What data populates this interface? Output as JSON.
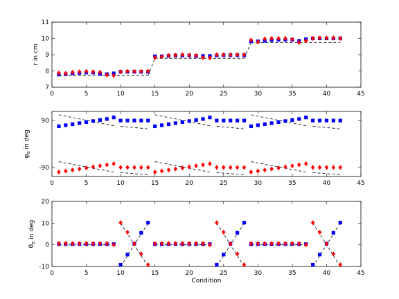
{
  "chart_data": [
    {
      "type": "scatter",
      "ylabel": "r in cm",
      "xlabel": "",
      "xlim": [
        0,
        45
      ],
      "ylim": [
        7,
        11
      ],
      "xticks": [
        "0",
        "5",
        "10",
        "15",
        "20",
        "25",
        "30",
        "35",
        "40",
        "45"
      ],
      "yticks": [
        "7",
        "8",
        "9",
        "10",
        "11"
      ],
      "grid": false,
      "reference_segments": [
        {
          "x": [
            1,
            14
          ],
          "y": [
            7.72,
            7.72
          ]
        },
        {
          "x": [
            14,
            15
          ],
          "y": [
            7.72,
            8.78
          ]
        },
        {
          "x": [
            15,
            28
          ],
          "y": [
            8.78,
            8.78
          ]
        },
        {
          "x": [
            28,
            29
          ],
          "y": [
            8.78,
            9.75
          ]
        },
        {
          "x": [
            29,
            42
          ],
          "y": [
            9.75,
            9.75
          ]
        }
      ],
      "series": [
        {
          "color": "#0000ff",
          "marker": "square",
          "x": [
            1,
            2,
            3,
            4,
            5,
            6,
            7,
            8,
            9,
            10,
            11,
            12,
            13,
            14,
            15,
            16,
            17,
            18,
            19,
            20,
            21,
            22,
            23,
            24,
            25,
            26,
            27,
            28,
            29,
            30,
            31,
            32,
            33,
            34,
            35,
            36,
            37,
            38,
            39,
            40,
            41,
            42
          ],
          "y": [
            7.78,
            7.8,
            7.85,
            7.88,
            7.9,
            7.9,
            7.82,
            7.8,
            7.85,
            7.95,
            7.95,
            7.95,
            7.95,
            7.95,
            8.9,
            8.9,
            8.93,
            8.95,
            8.95,
            8.95,
            8.92,
            8.92,
            8.92,
            8.95,
            8.97,
            8.97,
            8.97,
            8.97,
            9.82,
            9.82,
            9.85,
            9.9,
            9.92,
            9.92,
            9.92,
            9.85,
            9.95,
            10.0,
            10.0,
            10.0,
            10.0,
            10.0
          ]
        },
        {
          "color": "#ff0000",
          "marker": "diamond",
          "x": [
            1,
            2,
            3,
            4,
            5,
            6,
            7,
            8,
            9,
            10,
            11,
            12,
            13,
            14,
            15,
            16,
            17,
            18,
            19,
            20,
            21,
            22,
            23,
            24,
            25,
            26,
            27,
            28,
            29,
            30,
            31,
            32,
            33,
            34,
            35,
            36,
            37,
            38,
            39,
            40,
            41,
            42
          ],
          "y": [
            7.88,
            7.85,
            7.92,
            7.95,
            7.97,
            7.95,
            7.92,
            7.75,
            7.72,
            7.95,
            7.98,
            7.97,
            7.97,
            7.98,
            8.82,
            8.88,
            8.95,
            8.97,
            9.0,
            8.97,
            8.95,
            8.82,
            8.8,
            9.0,
            9.0,
            9.0,
            9.0,
            9.0,
            9.9,
            9.78,
            9.97,
            10.0,
            10.0,
            10.0,
            9.95,
            9.75,
            9.85,
            10.0,
            10.03,
            10.03,
            10.03,
            10.0
          ]
        }
      ]
    },
    {
      "type": "scatter",
      "ylabel": "φe in deg",
      "ylabel_main": "φ",
      "ylabel_sub": "e",
      "ylabel_rest": " in deg",
      "xlabel": "",
      "xlim": [
        0,
        45
      ],
      "ylim": [
        -125,
        125
      ],
      "xticks": [
        "0",
        "5",
        "10",
        "15",
        "20",
        "25",
        "30",
        "35",
        "40",
        "45"
      ],
      "yticks": [
        "-90",
        "90"
      ],
      "ytick_values": [
        -90,
        90
      ],
      "grid": false,
      "reference_segments": [
        {
          "x": [
            1,
            9
          ],
          "y": [
            112,
            70
          ]
        },
        {
          "x": [
            10,
            14
          ],
          "y": [
            68,
            58
          ]
        },
        {
          "x": [
            15,
            23
          ],
          "y": [
            112,
            70
          ]
        },
        {
          "x": [
            24,
            28
          ],
          "y": [
            68,
            58
          ]
        },
        {
          "x": [
            29,
            37
          ],
          "y": [
            112,
            70
          ]
        },
        {
          "x": [
            38,
            42
          ],
          "y": [
            68,
            58
          ]
        },
        {
          "x": [
            1,
            9
          ],
          "y": [
            -68,
            -108
          ]
        },
        {
          "x": [
            10,
            14
          ],
          "y": [
            -110,
            -118
          ]
        },
        {
          "x": [
            15,
            23
          ],
          "y": [
            -68,
            -108
          ]
        },
        {
          "x": [
            24,
            28
          ],
          "y": [
            -110,
            -118
          ]
        },
        {
          "x": [
            29,
            37
          ],
          "y": [
            -68,
            -108
          ]
        },
        {
          "x": [
            38,
            42
          ],
          "y": [
            -110,
            -118
          ]
        }
      ],
      "series": [
        {
          "color": "#0000ff",
          "marker": "square",
          "x": [
            1,
            2,
            3,
            4,
            5,
            6,
            7,
            8,
            9,
            10,
            11,
            12,
            13,
            14,
            15,
            16,
            17,
            18,
            19,
            20,
            21,
            22,
            23,
            24,
            25,
            26,
            27,
            28,
            29,
            30,
            31,
            32,
            33,
            34,
            35,
            36,
            37,
            38,
            39,
            40,
            41,
            42
          ],
          "y": [
            68,
            72,
            76,
            80,
            84,
            88,
            92,
            96,
            102,
            90,
            90,
            90,
            90,
            90,
            68,
            72,
            76,
            80,
            84,
            88,
            92,
            96,
            102,
            90,
            90,
            90,
            90,
            90,
            68,
            72,
            76,
            80,
            84,
            88,
            92,
            96,
            102,
            90,
            90,
            90,
            90,
            90
          ]
        },
        {
          "color": "#ff0000",
          "marker": "diamond",
          "x": [
            1,
            2,
            3,
            4,
            5,
            6,
            7,
            8,
            9,
            10,
            11,
            12,
            13,
            14,
            15,
            16,
            17,
            18,
            19,
            20,
            21,
            22,
            23,
            24,
            25,
            26,
            27,
            28,
            29,
            30,
            31,
            32,
            33,
            34,
            35,
            36,
            37,
            38,
            39,
            40,
            41,
            42
          ],
          "y": [
            -108,
            -104,
            -100,
            -96,
            -92,
            -88,
            -84,
            -80,
            -76,
            -90,
            -90,
            -90,
            -90,
            -90,
            -108,
            -104,
            -100,
            -96,
            -92,
            -88,
            -84,
            -80,
            -76,
            -90,
            -90,
            -90,
            -90,
            -90,
            -108,
            -104,
            -100,
            -96,
            -92,
            -88,
            -84,
            -80,
            -76,
            -90,
            -90,
            -90,
            -90,
            -90
          ]
        }
      ]
    },
    {
      "type": "scatter",
      "ylabel": "θe in deg",
      "ylabel_main": "θ",
      "ylabel_sub": "e",
      "ylabel_rest": " in deg",
      "xlabel": "Condition",
      "xlim": [
        0,
        45
      ],
      "ylim": [
        -10,
        20
      ],
      "xticks": [
        "0",
        "5",
        "10",
        "15",
        "20",
        "25",
        "30",
        "35",
        "40",
        "45"
      ],
      "yticks": [
        "-10",
        "0",
        "10",
        "20"
      ],
      "ytick_values": [
        -10,
        0,
        10,
        20
      ],
      "grid": false,
      "reference_segments": [
        {
          "x": [
            1,
            9
          ],
          "y": [
            0,
            0
          ]
        },
        {
          "x": [
            15,
            23
          ],
          "y": [
            0,
            0
          ]
        },
        {
          "x": [
            29,
            37
          ],
          "y": [
            0,
            0
          ]
        },
        {
          "x": [
            10,
            14
          ],
          "y": [
            10,
            -10
          ]
        },
        {
          "x": [
            10,
            14
          ],
          "y": [
            -10,
            10
          ]
        },
        {
          "x": [
            24,
            28
          ],
          "y": [
            10,
            -10
          ]
        },
        {
          "x": [
            24,
            28
          ],
          "y": [
            -10,
            10
          ]
        },
        {
          "x": [
            38,
            42
          ],
          "y": [
            10,
            -10
          ]
        },
        {
          "x": [
            38,
            42
          ],
          "y": [
            -10,
            10
          ]
        }
      ],
      "series": [
        {
          "color": "#0000ff",
          "marker": "square",
          "x": [
            1,
            2,
            3,
            4,
            5,
            6,
            7,
            8,
            9,
            10,
            11,
            12,
            13,
            14,
            15,
            16,
            17,
            18,
            19,
            20,
            21,
            22,
            23,
            24,
            25,
            26,
            27,
            28,
            29,
            30,
            31,
            32,
            33,
            34,
            35,
            36,
            37,
            38,
            39,
            40,
            41,
            42
          ],
          "y": [
            0.3,
            0.3,
            0.3,
            0.3,
            0.3,
            0.3,
            0.3,
            0.3,
            0.3,
            -9.2,
            -4.5,
            0.5,
            5.5,
            10.2,
            0.3,
            0.3,
            0.3,
            0.3,
            0.3,
            0.3,
            0.3,
            0.3,
            0.3,
            -9.2,
            -4.5,
            0.5,
            5.5,
            10.2,
            0.3,
            0.3,
            0.3,
            0.3,
            0.3,
            0.3,
            0.3,
            0.3,
            0.3,
            -9.2,
            -4.5,
            0.5,
            5.5,
            10.2
          ]
        },
        {
          "color": "#ff0000",
          "marker": "diamond",
          "x": [
            1,
            2,
            3,
            4,
            5,
            6,
            7,
            8,
            9,
            10,
            11,
            12,
            13,
            14,
            15,
            16,
            17,
            18,
            19,
            20,
            21,
            22,
            23,
            24,
            25,
            26,
            27,
            28,
            29,
            30,
            31,
            32,
            33,
            34,
            35,
            36,
            37,
            38,
            39,
            40,
            41,
            42
          ],
          "y": [
            0.6,
            0.6,
            0.6,
            0.6,
            0.6,
            0.6,
            0.6,
            0.6,
            0,
            10.2,
            5.8,
            0.5,
            -4.2,
            -9.2,
            0.6,
            0.6,
            0.6,
            0.6,
            0.6,
            0.6,
            0.6,
            0.6,
            0,
            10.2,
            5.8,
            0.5,
            -4.2,
            -9.2,
            0.6,
            0.6,
            0.6,
            0.6,
            0.6,
            0.6,
            0.6,
            0.6,
            0,
            10.2,
            5.8,
            0.5,
            -4.2,
            -9.2
          ]
        }
      ]
    }
  ]
}
